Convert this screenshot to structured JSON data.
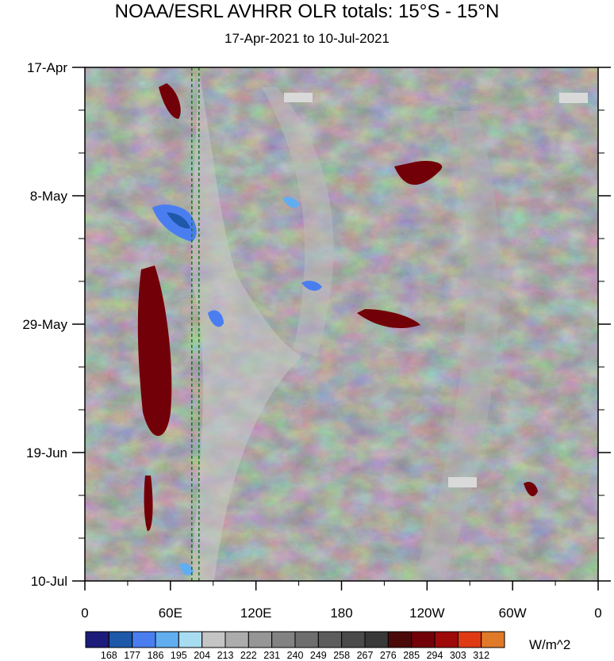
{
  "chart_data": {
    "type": "heatmap",
    "title": "NOAA/ESRL AVHRR OLR totals: 15°S - 15°N",
    "subtitle": "17-Apr-2021 to 10-Jul-2021",
    "x_axis": {
      "quantity": "longitude",
      "range": [
        "0",
        "0"
      ],
      "tick_labels": [
        "0",
        "60E",
        "120E",
        "180",
        "120W",
        "60W",
        "0"
      ],
      "tick_values_deg_east": [
        0,
        60,
        120,
        180,
        240,
        300,
        360
      ]
    },
    "y_axis": {
      "quantity": "time",
      "range": [
        "2021-04-17",
        "2021-07-10"
      ],
      "direction": "top-to-bottom",
      "tick_labels": [
        "17-Apr",
        "8-May",
        "29-May",
        "19-Jun",
        "10-Jul"
      ],
      "tick_dates": [
        "2021-04-17",
        "2021-05-08",
        "2021-05-29",
        "2021-06-19",
        "2021-07-10"
      ]
    },
    "colorbar": {
      "units": "W/m^2",
      "levels": [
        168,
        177,
        186,
        195,
        204,
        213,
        222,
        231,
        240,
        249,
        258,
        267,
        276,
        285,
        294,
        303,
        312
      ],
      "colors": [
        "#1c1c7a",
        "#1e58a8",
        "#4a7ef0",
        "#60aef0",
        "#a8dcf0",
        "#c4c4c4",
        "#acacac",
        "#969696",
        "#828282",
        "#6e6e6e",
        "#5c5c5c",
        "#4a4a4a",
        "#383838",
        "#4a0a0a",
        "#720008",
        "#9e0a0a",
        "#e03a14",
        "#e07a28"
      ]
    },
    "overlay": {
      "dashed_vertical_lines_deg_east": [
        75,
        80
      ],
      "line_color": "#1e7a1e"
    },
    "grid": false,
    "legend_placement": "bottom"
  }
}
